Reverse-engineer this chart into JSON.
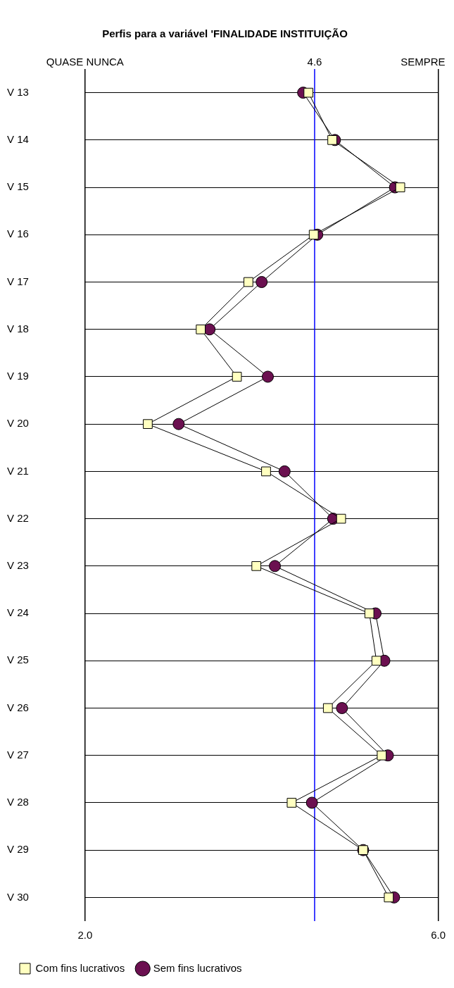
{
  "chart_data": {
    "type": "line",
    "orientation": "horizontal",
    "title": "Perfis para a variável 'FINALIDADE INSTITUIÇÃO",
    "annotations": [
      "QUASE NUNCA",
      "SEMPRE"
    ],
    "categories": [
      "V 13",
      "V 14",
      "V 15",
      "V 16",
      "V 17",
      "V 18",
      "V 19",
      "V 20",
      "V 21",
      "V 22",
      "V 23",
      "V 24",
      "V 25",
      "V 26",
      "V 27",
      "V 28",
      "V 29",
      "V 30"
    ],
    "series": [
      {
        "name": "Sem fins lucrativos",
        "color": "#6b1050",
        "marker": "circle",
        "values": [
          4.47,
          4.83,
          5.51,
          4.63,
          4.0,
          3.41,
          4.07,
          3.06,
          4.26,
          4.81,
          4.15,
          5.29,
          5.39,
          4.91,
          5.43,
          4.57,
          5.15,
          5.5
        ]
      },
      {
        "name": "Com fins lucrativos",
        "color": "#ffffc0",
        "marker": "square",
        "values": [
          4.53,
          4.8,
          5.57,
          4.59,
          3.85,
          3.31,
          3.72,
          2.71,
          4.05,
          4.9,
          3.94,
          5.22,
          5.3,
          4.75,
          5.36,
          4.34,
          5.15,
          5.44
        ]
      }
    ],
    "xlim": [
      2,
      6
    ],
    "xticks": [
      {
        "value": 2,
        "label": "2.0"
      },
      {
        "value": 6,
        "label": "6.0"
      }
    ],
    "ref_lines": [
      {
        "axis": "x",
        "value": 4.6,
        "label": "4.6",
        "color": "#0000ff"
      }
    ],
    "grid": true,
    "legend": "bottom left"
  }
}
